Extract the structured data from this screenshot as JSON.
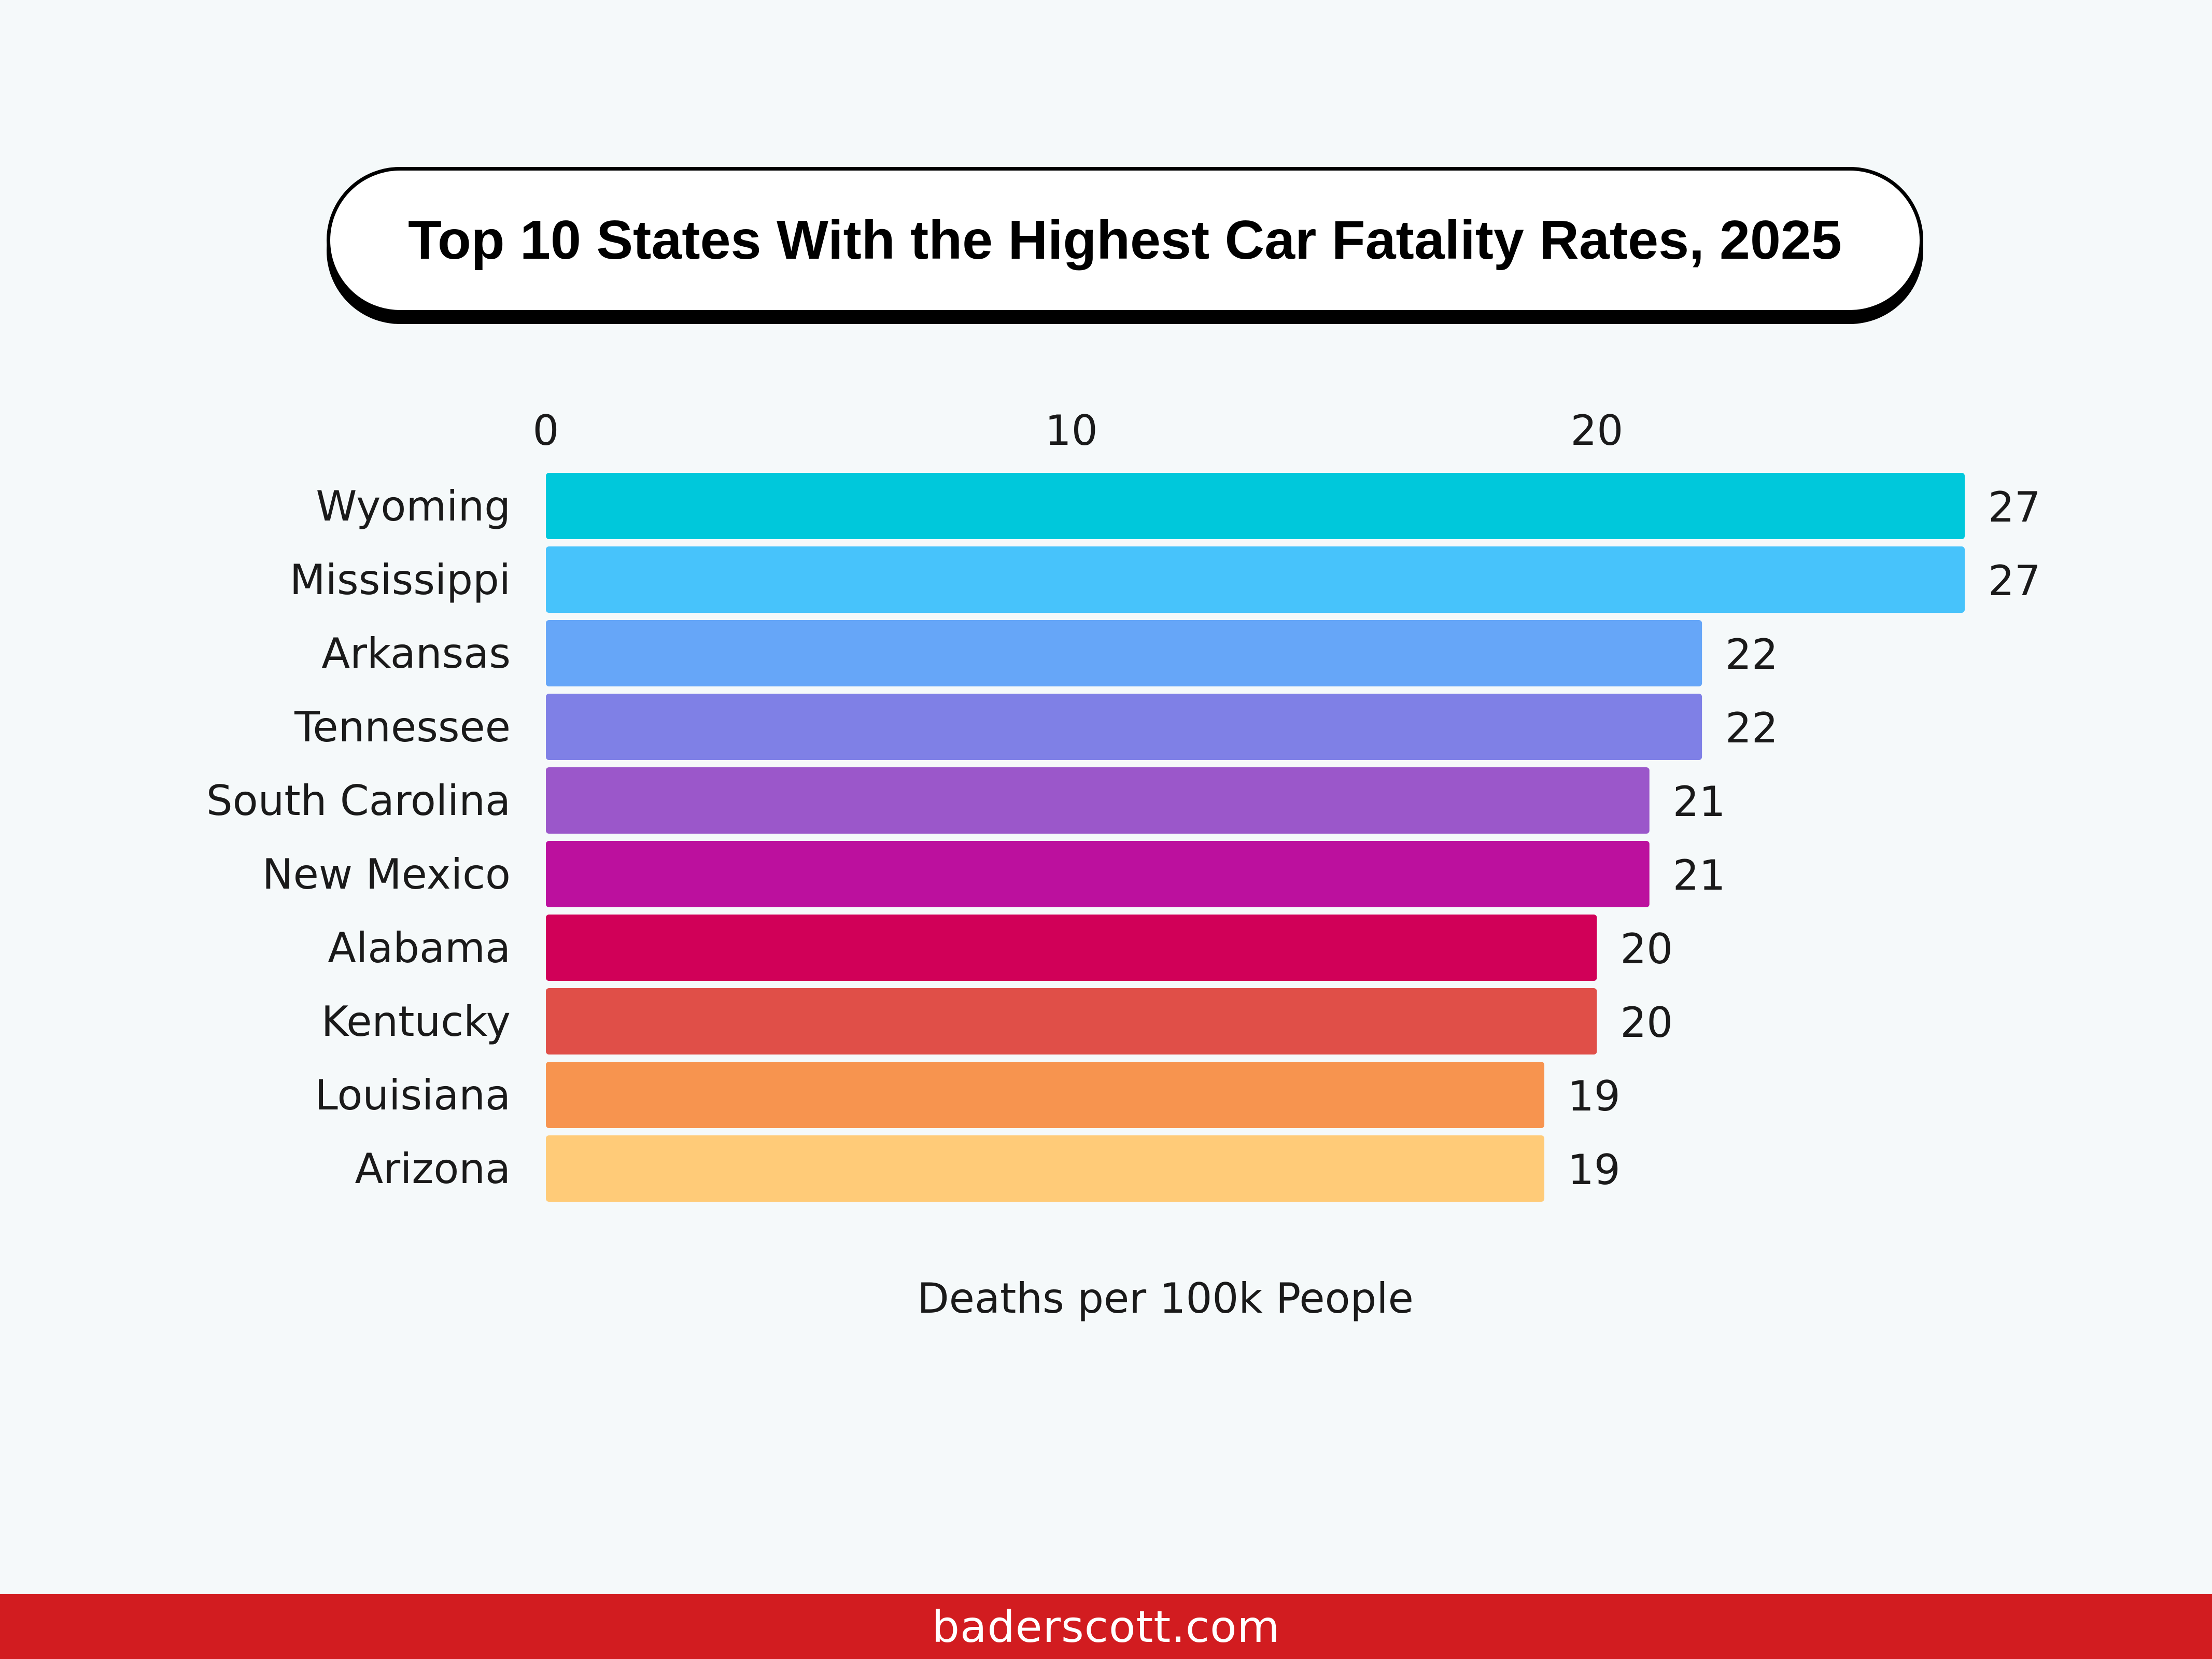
{
  "chart_data": {
    "type": "bar",
    "orientation": "horizontal",
    "title": "Top 10 States With the Highest Car Fatality Rates, 2025",
    "xlabel": "Deaths per 100k People",
    "ylabel": "",
    "xlim": [
      0,
      27
    ],
    "x_ticks": [
      0,
      10,
      20
    ],
    "x_axis_position": "top",
    "grid": false,
    "legend": "none",
    "categories": [
      "Wyoming",
      "Mississippi",
      "Arkansas",
      "Tennessee",
      "South Carolina",
      "New Mexico",
      "Alabama",
      "Kentucky",
      "Louisiana",
      "Arizona"
    ],
    "values": [
      27,
      27,
      22,
      22,
      21,
      21,
      20,
      20,
      19,
      19
    ],
    "data_labels": [
      "27",
      "27",
      "22",
      "22",
      "21",
      "21",
      "20",
      "20",
      "19",
      "19"
    ],
    "colors": [
      "#00c8db",
      "#47c3fb",
      "#66a6f8",
      "#7f80e6",
      "#9b57ca",
      "#bc109e",
      "#d10058",
      "#e04f48",
      "#f7944f",
      "#ffcb78"
    ]
  },
  "footer": {
    "text": "baderscott.com",
    "background": "#d21c20"
  }
}
